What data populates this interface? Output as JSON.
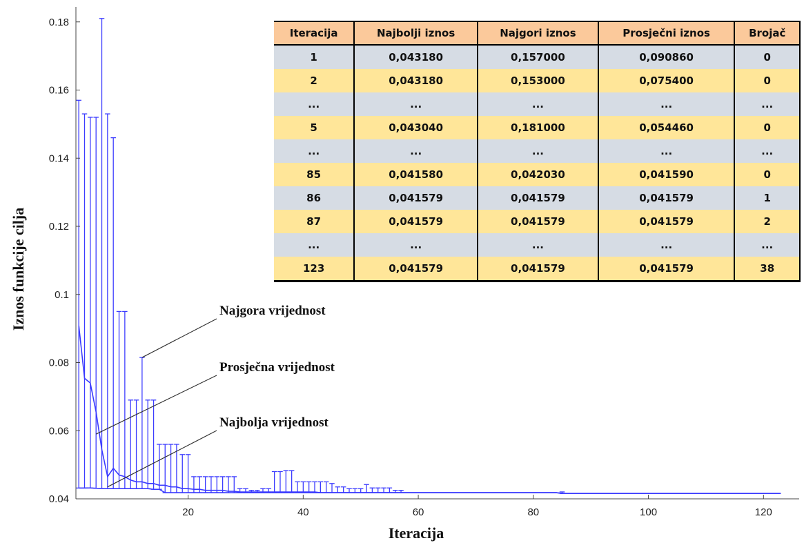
{
  "chart_data": {
    "type": "line",
    "title": "",
    "xlabel": "Iteracija",
    "ylabel": "Iznos funkcije cilja",
    "xlim": [
      0.5,
      125
    ],
    "ylim": [
      0.04,
      0.184
    ],
    "x_ticks": [
      20,
      40,
      60,
      80,
      100,
      120
    ],
    "y_ticks": [
      0.04,
      0.06,
      0.08,
      0.1,
      0.12,
      0.14,
      0.16,
      0.18
    ],
    "y_tick_labels": [
      "0.04",
      "0.06",
      "0.08",
      "0.1",
      "0.12",
      "0.14",
      "0.16",
      "0.18"
    ],
    "grid": false,
    "series_color": "#3b3bff",
    "series": [
      {
        "role": "worst",
        "values": [
          0.157,
          0.153,
          0.152,
          0.152,
          0.181,
          0.153,
          0.146,
          0.095,
          0.095,
          0.069,
          0.069,
          0.0815,
          0.069,
          0.069,
          0.056,
          0.056,
          0.056,
          0.056,
          0.053,
          0.053,
          0.0465,
          0.0465,
          0.0465,
          0.0465,
          0.0465,
          0.0465,
          0.0465,
          0.0465,
          0.043,
          0.043,
          0.0425,
          0.0425,
          0.043,
          0.043,
          0.048,
          0.048,
          0.0483,
          0.0483,
          0.045,
          0.045,
          0.045,
          0.045,
          0.045,
          0.045,
          0.0445,
          0.0435,
          0.0435,
          0.043,
          0.043,
          0.043,
          0.0442,
          0.0432,
          0.0432,
          0.0432,
          0.0432,
          0.0425,
          0.0425,
          0.042,
          0.042,
          0.042,
          0.042,
          0.0418,
          0.0418,
          0.0418,
          0.0418,
          0.0418,
          0.0418,
          0.0418,
          0.0418,
          0.0418,
          0.0418,
          0.0418,
          0.0418,
          0.0418,
          0.0418,
          0.0418,
          0.0418,
          0.0418,
          0.0418,
          0.0418,
          0.0418,
          0.0418,
          0.0418,
          0.0418,
          0.04203,
          0.041579,
          0.041579,
          0.041579,
          0.041579,
          0.041579,
          0.041579,
          0.041579,
          0.041579,
          0.041579,
          0.041579,
          0.041579,
          0.041579,
          0.041579,
          0.041579,
          0.041579,
          0.041579,
          0.041579,
          0.041579,
          0.041579,
          0.041579,
          0.041579,
          0.041579,
          0.041579,
          0.041579,
          0.041579,
          0.041579,
          0.041579,
          0.041579,
          0.041579,
          0.041579,
          0.041579,
          0.041579,
          0.041579,
          0.041579,
          0.041579,
          0.041579,
          0.041579,
          0.041579
        ]
      },
      {
        "role": "average",
        "values": [
          0.09086,
          0.0754,
          0.074,
          0.0655,
          0.05446,
          0.0465,
          0.049,
          0.047,
          0.0465,
          0.0455,
          0.045,
          0.045,
          0.0445,
          0.0445,
          0.044,
          0.044,
          0.0435,
          0.0435,
          0.043,
          0.043,
          0.0428,
          0.0428,
          0.0425,
          0.0425,
          0.0425,
          0.0425,
          0.0422,
          0.0422,
          0.042,
          0.042,
          0.042,
          0.042,
          0.042,
          0.042,
          0.042,
          0.042,
          0.042,
          0.042,
          0.042,
          0.042,
          0.042,
          0.042,
          0.0418,
          0.0418,
          0.0418,
          0.0418,
          0.0418,
          0.0418,
          0.0418,
          0.0418,
          0.0418,
          0.0418,
          0.0418,
          0.0418,
          0.0418,
          0.0418,
          0.0418,
          0.0418,
          0.0418,
          0.0418,
          0.0418,
          0.0418,
          0.0418,
          0.0418,
          0.0418,
          0.0418,
          0.0418,
          0.0418,
          0.0418,
          0.0418,
          0.0418,
          0.0418,
          0.0418,
          0.0418,
          0.0418,
          0.0418,
          0.0418,
          0.0418,
          0.0418,
          0.0418,
          0.0418,
          0.0418,
          0.0418,
          0.0418,
          0.04159,
          0.041579,
          0.041579,
          0.041579,
          0.041579,
          0.041579,
          0.041579,
          0.041579,
          0.041579,
          0.041579,
          0.041579,
          0.041579,
          0.041579,
          0.041579,
          0.041579,
          0.041579,
          0.041579,
          0.041579,
          0.041579,
          0.041579,
          0.041579,
          0.041579,
          0.041579,
          0.041579,
          0.041579,
          0.041579,
          0.041579,
          0.041579,
          0.041579,
          0.041579,
          0.041579,
          0.041579,
          0.041579,
          0.041579,
          0.041579,
          0.041579,
          0.041579,
          0.041579,
          0.041579
        ]
      },
      {
        "role": "best",
        "values": [
          0.04318,
          0.04318,
          0.0432,
          0.0431,
          0.04304,
          0.043,
          0.043,
          0.043,
          0.043,
          0.043,
          0.043,
          0.043,
          0.043,
          0.0428,
          0.0428,
          0.0418,
          0.0418,
          0.0418,
          0.0418,
          0.0418,
          0.0418,
          0.0418,
          0.0418,
          0.0418,
          0.0418,
          0.0418,
          0.0418,
          0.0418,
          0.0418,
          0.0418,
          0.0418,
          0.0418,
          0.0418,
          0.0418,
          0.0418,
          0.0418,
          0.0418,
          0.0418,
          0.0418,
          0.0418,
          0.0418,
          0.0418,
          0.0418,
          0.0418,
          0.0418,
          0.0418,
          0.0418,
          0.0418,
          0.0418,
          0.0418,
          0.0418,
          0.0418,
          0.0418,
          0.0418,
          0.0418,
          0.0418,
          0.0418,
          0.0418,
          0.0418,
          0.0418,
          0.0418,
          0.0418,
          0.0418,
          0.0418,
          0.0418,
          0.0418,
          0.0418,
          0.0418,
          0.0418,
          0.0418,
          0.0418,
          0.0418,
          0.0418,
          0.0418,
          0.0418,
          0.0418,
          0.0418,
          0.0418,
          0.0418,
          0.0418,
          0.0418,
          0.0418,
          0.0418,
          0.0418,
          0.04158,
          0.041579,
          0.041579,
          0.041579,
          0.041579,
          0.041579,
          0.041579,
          0.041579,
          0.041579,
          0.041579,
          0.041579,
          0.041579,
          0.041579,
          0.041579,
          0.041579,
          0.041579,
          0.041579,
          0.041579,
          0.041579,
          0.041579,
          0.041579,
          0.041579,
          0.041579,
          0.041579,
          0.041579,
          0.041579,
          0.041579,
          0.041579,
          0.041579,
          0.041579,
          0.041579,
          0.041579,
          0.041579,
          0.041579,
          0.041579,
          0.041579,
          0.041579,
          0.041579,
          0.041579
        ]
      }
    ],
    "annotations": [
      {
        "text": "Najgora vrijednost",
        "points_to": {
          "x": 12,
          "y": 0.0815
        }
      },
      {
        "text": "Prosječna vrijednost",
        "points_to": {
          "x": 4,
          "y": 0.059
        }
      },
      {
        "text": "Najbolja vrijednost",
        "points_to": {
          "x": 6,
          "y": 0.0435
        }
      }
    ]
  },
  "table": {
    "headers": [
      "Iteracija",
      "Najbolji iznos",
      "Najgori iznos",
      "Prosječni iznos",
      "Brojač"
    ],
    "rows": [
      [
        "1",
        "0,043180",
        "0,157000",
        "0,090860",
        "0"
      ],
      [
        "2",
        "0,043180",
        "0,153000",
        "0,075400",
        "0"
      ],
      [
        "...",
        "...",
        "...",
        "...",
        "..."
      ],
      [
        "5",
        "0,043040",
        "0,181000",
        "0,054460",
        "0"
      ],
      [
        "...",
        "...",
        "...",
        "...",
        "..."
      ],
      [
        "85",
        "0,041580",
        "0,042030",
        "0,041590",
        "0"
      ],
      [
        "86",
        "0,041579",
        "0,041579",
        "0,041579",
        "1"
      ],
      [
        "87",
        "0,041579",
        "0,041579",
        "0,041579",
        "2"
      ],
      [
        "...",
        "...",
        "...",
        "...",
        "..."
      ],
      [
        "123",
        "0,041579",
        "0,041579",
        "0,041579",
        "38"
      ]
    ]
  }
}
